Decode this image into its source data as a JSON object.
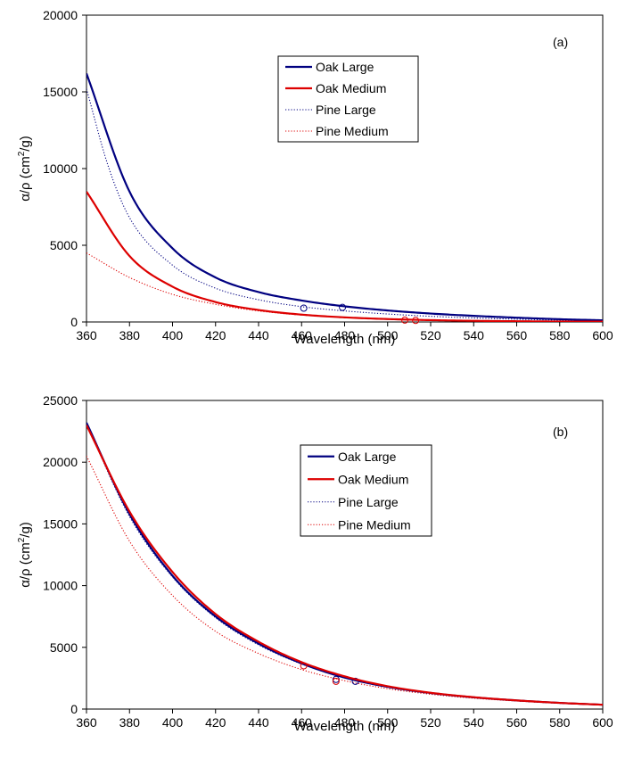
{
  "chart_data": [
    {
      "type": "line",
      "panel_label": "(a)",
      "xlabel": "Wavelength (nm)",
      "ylabel": "α/ρ (cm²/g)",
      "xlim": [
        360,
        600
      ],
      "ylim": [
        0,
        20000
      ],
      "xticks": [
        360,
        380,
        400,
        420,
        440,
        460,
        480,
        500,
        520,
        540,
        560,
        580,
        600
      ],
      "yticks": [
        0,
        5000,
        10000,
        15000,
        20000
      ],
      "grid": false,
      "legend_position": "top-center",
      "series": [
        {
          "name": "Oak Large",
          "color": "#000080",
          "style": "solid",
          "width": "thick",
          "points": [
            [
              360,
              16200
            ],
            [
              380,
              8500
            ],
            [
              400,
              4800
            ],
            [
              420,
              2900
            ],
            [
              440,
              1950
            ],
            [
              460,
              1400
            ],
            [
              480,
              1020
            ],
            [
              500,
              750
            ],
            [
              520,
              550
            ],
            [
              540,
              400
            ],
            [
              560,
              280
            ],
            [
              580,
              180
            ],
            [
              600,
              110
            ]
          ],
          "markers": [
            [
              479,
              950
            ]
          ]
        },
        {
          "name": "Oak Medium",
          "color": "#dd0000",
          "style": "solid",
          "width": "thick",
          "points": [
            [
              360,
              8500
            ],
            [
              380,
              4300
            ],
            [
              400,
              2300
            ],
            [
              420,
              1300
            ],
            [
              440,
              780
            ],
            [
              460,
              480
            ],
            [
              480,
              300
            ],
            [
              500,
              190
            ],
            [
              520,
              120
            ],
            [
              540,
              75
            ],
            [
              560,
              48
            ],
            [
              580,
              30
            ],
            [
              600,
              20
            ]
          ],
          "markers": [
            [
              508,
              120
            ]
          ]
        },
        {
          "name": "Pine Large",
          "color": "#000080",
          "style": "dotted",
          "width": "thin",
          "points": [
            [
              360,
              15200
            ],
            [
              370,
              10200
            ],
            [
              380,
              6800
            ],
            [
              400,
              3700
            ],
            [
              420,
              2200
            ],
            [
              440,
              1450
            ],
            [
              460,
              1000
            ],
            [
              480,
              720
            ],
            [
              500,
              520
            ],
            [
              520,
              370
            ],
            [
              540,
              260
            ],
            [
              560,
              180
            ],
            [
              580,
              120
            ],
            [
              600,
              80
            ]
          ],
          "markers": [
            [
              461,
              900
            ]
          ]
        },
        {
          "name": "Pine Medium",
          "color": "#dd0000",
          "style": "dotted",
          "width": "thin",
          "points": [
            [
              360,
              4500
            ],
            [
              380,
              2900
            ],
            [
              400,
              1800
            ],
            [
              420,
              1150
            ],
            [
              440,
              720
            ],
            [
              460,
              450
            ],
            [
              480,
              290
            ],
            [
              500,
              185
            ],
            [
              520,
              120
            ],
            [
              540,
              80
            ],
            [
              560,
              52
            ],
            [
              580,
              34
            ],
            [
              600,
              22
            ]
          ],
          "markers": [
            [
              513,
              100
            ]
          ]
        }
      ]
    },
    {
      "type": "line",
      "panel_label": "(b)",
      "xlabel": "Wavelength (nm)",
      "ylabel": "α/ρ (cm²/g)",
      "xlim": [
        360,
        600
      ],
      "ylim": [
        0,
        25000
      ],
      "xticks": [
        360,
        380,
        400,
        420,
        440,
        460,
        480,
        500,
        520,
        540,
        560,
        580,
        600
      ],
      "yticks": [
        0,
        5000,
        10000,
        15000,
        20000,
        25000
      ],
      "grid": false,
      "legend_position": "top-center",
      "series": [
        {
          "name": "Oak Large",
          "color": "#000080",
          "style": "solid",
          "width": "thick",
          "points": [
            [
              360,
              23200
            ],
            [
              380,
              15800
            ],
            [
              400,
              10800
            ],
            [
              420,
              7500
            ],
            [
              440,
              5300
            ],
            [
              460,
              3700
            ],
            [
              480,
              2550
            ],
            [
              500,
              1800
            ],
            [
              520,
              1300
            ],
            [
              540,
              950
            ],
            [
              560,
              700
            ],
            [
              580,
              500
            ],
            [
              600,
              350
            ]
          ],
          "markers": [
            [
              485,
              2250
            ]
          ]
        },
        {
          "name": "Oak Medium",
          "color": "#dd0000",
          "style": "solid",
          "width": "thick",
          "points": [
            [
              360,
              23000
            ],
            [
              380,
              16000
            ],
            [
              400,
              11100
            ],
            [
              420,
              7700
            ],
            [
              440,
              5450
            ],
            [
              460,
              3800
            ],
            [
              480,
              2650
            ],
            [
              500,
              1850
            ],
            [
              520,
              1320
            ],
            [
              540,
              960
            ],
            [
              560,
              700
            ],
            [
              580,
              500
            ],
            [
              600,
              350
            ]
          ],
          "markers": [
            [
              461,
              3500
            ]
          ]
        },
        {
          "name": "Pine Large",
          "color": "#000080",
          "style": "dotted",
          "width": "thin",
          "points": [
            [
              360,
              23100
            ],
            [
              380,
              15600
            ],
            [
              400,
              10700
            ],
            [
              420,
              7400
            ],
            [
              440,
              5200
            ],
            [
              460,
              3650
            ],
            [
              480,
              2550
            ],
            [
              500,
              1800
            ],
            [
              520,
              1290
            ],
            [
              540,
              940
            ],
            [
              560,
              690
            ],
            [
              580,
              490
            ],
            [
              600,
              345
            ]
          ],
          "markers": [
            [
              476,
              2400
            ]
          ]
        },
        {
          "name": "Pine Medium",
          "color": "#dd0000",
          "style": "dotted",
          "width": "thin",
          "points": [
            [
              360,
              20500
            ],
            [
              380,
              13600
            ],
            [
              400,
              9200
            ],
            [
              420,
              6300
            ],
            [
              440,
              4500
            ],
            [
              460,
              3200
            ],
            [
              480,
              2300
            ],
            [
              500,
              1650
            ],
            [
              520,
              1200
            ],
            [
              540,
              880
            ],
            [
              560,
              650
            ],
            [
              580,
              460
            ],
            [
              600,
              330
            ]
          ],
          "markers": [
            [
              476,
              2250
            ]
          ]
        }
      ]
    }
  ]
}
